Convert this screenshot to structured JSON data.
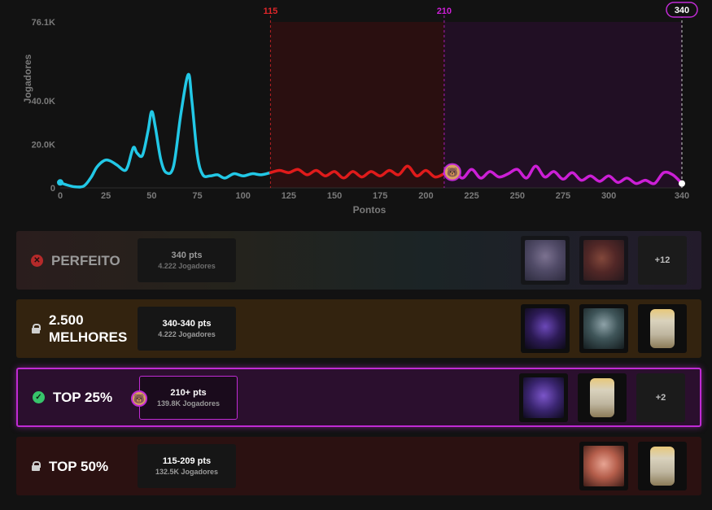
{
  "chart_data": {
    "type": "area",
    "xlabel": "Pontos",
    "ylabel": "Jogadores",
    "xlim": [
      0,
      340
    ],
    "ylim": [
      0,
      76100
    ],
    "x_ticks": [
      0,
      25,
      50,
      75,
      100,
      125,
      150,
      175,
      200,
      225,
      250,
      275,
      300,
      340
    ],
    "y_ticks": [
      "76.1K",
      "40.0K",
      "20.0K",
      "0"
    ],
    "y_tick_values": [
      76100,
      40000,
      20000,
      0
    ],
    "markers": [
      {
        "label": "115",
        "value": 115,
        "color": "#e0262a"
      },
      {
        "label": "210",
        "value": 210,
        "color": "#cc1fd6"
      },
      {
        "label": "340",
        "value": 340,
        "color": "#ffffff"
      }
    ],
    "current_score": 210,
    "segments": [
      {
        "range": [
          0,
          115
        ],
        "color": "#22c8e6"
      },
      {
        "range": [
          115,
          210
        ],
        "color": "#e01b1b"
      },
      {
        "range": [
          210,
          340
        ],
        "color": "#cc1fd6"
      }
    ],
    "points": [
      [
        0,
        2500
      ],
      [
        3,
        1500
      ],
      [
        8,
        500
      ],
      [
        13,
        900
      ],
      [
        17,
        5000
      ],
      [
        20,
        9500
      ],
      [
        24,
        12500
      ],
      [
        27,
        12500
      ],
      [
        31,
        10500
      ],
      [
        35,
        8000
      ],
      [
        37,
        10000
      ],
      [
        40,
        18500
      ],
      [
        42,
        16000
      ],
      [
        45,
        15000
      ],
      [
        48,
        26000
      ],
      [
        50,
        35000
      ],
      [
        52,
        28000
      ],
      [
        55,
        13000
      ],
      [
        58,
        7000
      ],
      [
        62,
        10000
      ],
      [
        66,
        34000
      ],
      [
        70,
        52000
      ],
      [
        72,
        40000
      ],
      [
        75,
        15000
      ],
      [
        78,
        6000
      ],
      [
        82,
        5500
      ],
      [
        86,
        6000
      ],
      [
        90,
        4500
      ],
      [
        95,
        6500
      ],
      [
        100,
        5500
      ],
      [
        105,
        6500
      ],
      [
        110,
        6000
      ],
      [
        115,
        7000
      ],
      [
        120,
        8000
      ],
      [
        125,
        7000
      ],
      [
        130,
        8500
      ],
      [
        135,
        6000
      ],
      [
        140,
        8000
      ],
      [
        145,
        5500
      ],
      [
        150,
        7500
      ],
      [
        155,
        4500
      ],
      [
        160,
        7500
      ],
      [
        165,
        5000
      ],
      [
        170,
        7500
      ],
      [
        175,
        5500
      ],
      [
        180,
        8000
      ],
      [
        185,
        6000
      ],
      [
        190,
        10000
      ],
      [
        195,
        5500
      ],
      [
        200,
        8000
      ],
      [
        205,
        5000
      ],
      [
        210,
        6500
      ],
      [
        215,
        8000
      ],
      [
        220,
        4500
      ],
      [
        225,
        8500
      ],
      [
        230,
        4500
      ],
      [
        235,
        7500
      ],
      [
        240,
        5000
      ],
      [
        245,
        6500
      ],
      [
        250,
        8500
      ],
      [
        255,
        4500
      ],
      [
        260,
        10000
      ],
      [
        265,
        5000
      ],
      [
        270,
        7500
      ],
      [
        275,
        4000
      ],
      [
        280,
        7000
      ],
      [
        285,
        3500
      ],
      [
        290,
        5500
      ],
      [
        295,
        3000
      ],
      [
        300,
        5500
      ],
      [
        305,
        2500
      ],
      [
        310,
        4500
      ],
      [
        315,
        2000
      ],
      [
        320,
        3500
      ],
      [
        325,
        2000
      ],
      [
        330,
        7000
      ],
      [
        335,
        6000
      ],
      [
        340,
        2000
      ]
    ]
  },
  "tiers": [
    {
      "name": "PERFEITO",
      "status": "failed",
      "points": "340 pts",
      "players": "4.222 Jogadores",
      "rewards": [
        "champion-skin",
        "champion-skin"
      ],
      "more": "+12"
    },
    {
      "name": "2.500 MELHORES",
      "status": "locked",
      "points": "340-340 pts",
      "players": "4.222 Jogadores",
      "rewards": [
        "champion-skin",
        "champion-skin",
        "capsule"
      ]
    },
    {
      "name": "TOP 25%",
      "status": "achieved",
      "points": "210+ pts",
      "players": "139.8K Jogadores",
      "rewards": [
        "champion-skin",
        "capsule"
      ],
      "more": "+2"
    },
    {
      "name": "TOP 50%",
      "status": "locked",
      "points": "115-209 pts",
      "players": "132.5K Jogadores",
      "rewards": [
        "champion-skin",
        "capsule"
      ]
    }
  ],
  "icons": {
    "failed": "close-circle-icon",
    "locked": "lock-icon",
    "achieved": "check-circle-icon"
  },
  "colors": {
    "accent": "#c02bd4",
    "failed": "#b52a2a",
    "achieved": "#37c46b"
  }
}
